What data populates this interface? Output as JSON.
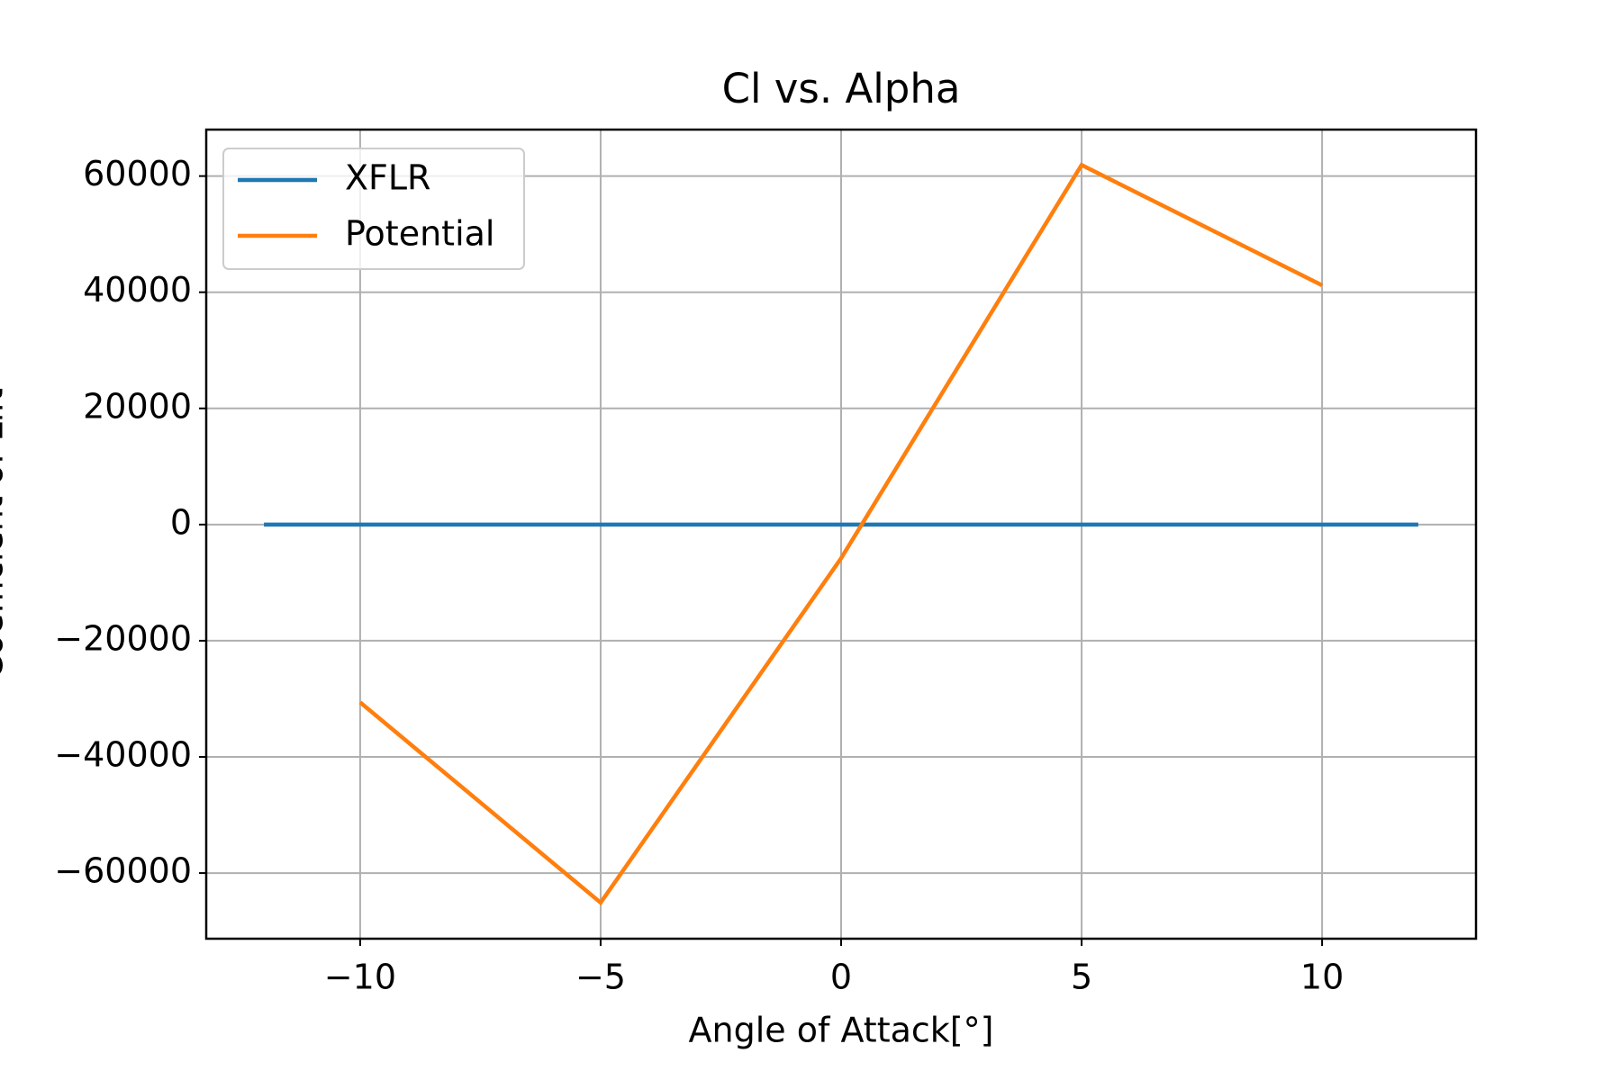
{
  "chart_data": {
    "type": "line",
    "title": "Cl vs. Alpha",
    "xlabel": "Angle of Attack[°]",
    "ylabel": "Coefficient of Lift",
    "series": [
      {
        "name": "XFLR",
        "color": "#1f77b4",
        "x": [
          -12,
          12
        ],
        "values": [
          0,
          0
        ]
      },
      {
        "name": "Potential",
        "color": "#ff7f0e",
        "x": [
          -10,
          -5,
          0,
          5,
          10
        ],
        "values": [
          -30600,
          -65100,
          -5800,
          61900,
          41200
        ]
      }
    ],
    "xlim": [
      -13.2,
      13.2
    ],
    "ylim": [
      -71300,
      68000
    ],
    "xticks": [
      {
        "value": -10,
        "label": "−10"
      },
      {
        "value": -5,
        "label": "−5"
      },
      0,
      5,
      10
    ],
    "yticks": [
      {
        "value": -60000,
        "label": "−60000"
      },
      {
        "value": -40000,
        "label": "−40000"
      },
      {
        "value": -20000,
        "label": "−20000"
      },
      0,
      20000,
      40000,
      60000
    ],
    "grid": true,
    "legend": "upper left"
  }
}
